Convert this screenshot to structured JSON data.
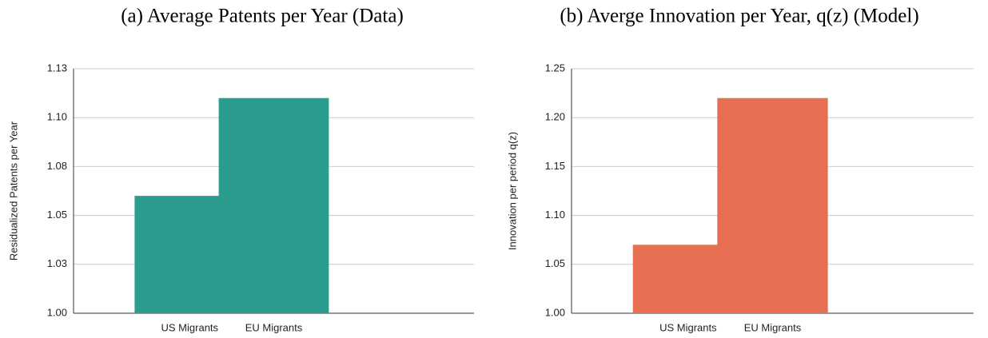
{
  "chart_data": [
    {
      "type": "bar",
      "title": "(a) Average Patents per Year (Data)",
      "y_label": "Residualized Patents per Year",
      "categories": [
        "US Migrants",
        "EU Migrants"
      ],
      "values": [
        1.06,
        1.11
      ],
      "color": "#2a9d8f",
      "ylim": [
        1,
        1.125
      ],
      "yticks": [
        {
          "value": 1,
          "label": "1.00"
        },
        {
          "value": 1.025,
          "label": "1.03"
        },
        1.05,
        {
          "value": 1.075,
          "label": "1.08"
        },
        {
          "value": 1.1,
          "label": "1.10"
        },
        {
          "value": 1.125,
          "label": "1.13"
        }
      ],
      "grid": true
    },
    {
      "type": "bar",
      "title": "(b) Averge Innovation per Year, q(z) (Model)",
      "y_label": "Innovation per period q(z)",
      "categories": [
        "US Migrants",
        "EU Migrants"
      ],
      "values": [
        1.07,
        1.22
      ],
      "color": "#e76f51",
      "ylim": [
        1,
        1.25
      ],
      "yticks": [
        {
          "value": 1,
          "label": "1.00"
        },
        1.05,
        {
          "value": 1.1,
          "label": "1.10"
        },
        1.15,
        {
          "value": 1.2,
          "label": "1.20"
        },
        1.25
      ],
      "grid": true
    }
  ]
}
